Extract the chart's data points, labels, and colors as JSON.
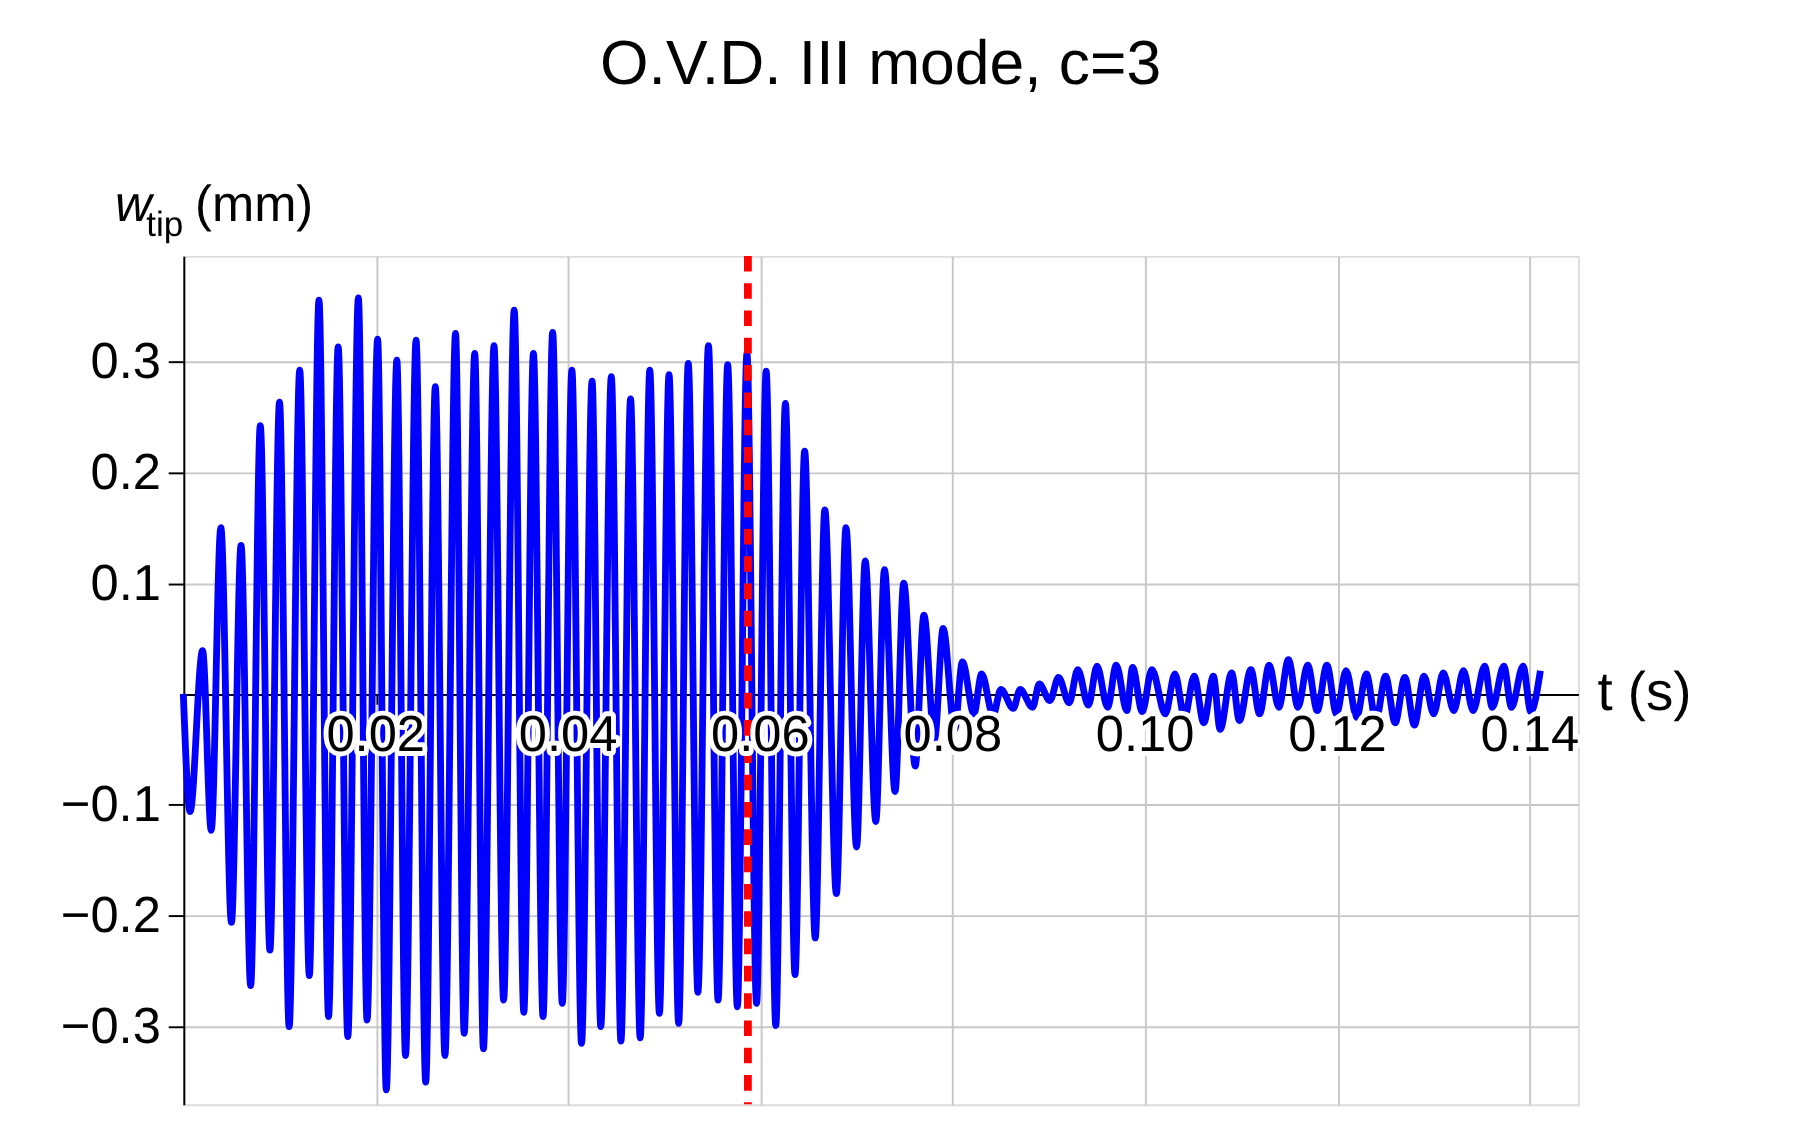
{
  "chart_data": {
    "type": "line",
    "title": "O.V.D. III mode, c=3",
    "xlabel": "t (s)",
    "ylabel": "w$_{tip}$(mm)",
    "xlim": [
      0,
      0.145
    ],
    "ylim": [
      -0.37,
      0.395
    ],
    "xticks": [
      0.02,
      0.04,
      0.06,
      0.08,
      {
        "value": 0.1,
        "label": "0.10"
      },
      0.12,
      0.14
    ],
    "yticks": [
      {
        "value": -0.3,
        "label": "−0.3"
      },
      {
        "value": -0.2,
        "label": "−0.2"
      },
      {
        "value": -0.1,
        "label": "−0.1"
      },
      0.1,
      0.2,
      0.3
    ],
    "grid": true,
    "line_style": "solid",
    "ref_lines": [
      {
        "axis": "x",
        "value": 0.0587,
        "color": "#ff0000",
        "line_style": "dashed"
      }
    ],
    "series": [
      {
        "color": "#0000ff",
        "x": [
          0,
          0.0007,
          0.002,
          0.0029,
          0.0039,
          0.005,
          0.006,
          0.007,
          0.008,
          0.009,
          0.01,
          0.011,
          0.0121,
          0.0131,
          0.0141,
          0.0151,
          0.0161,
          0.0171,
          0.0182,
          0.0191,
          0.0202,
          0.0211,
          0.0222,
          0.0231,
          0.0242,
          0.0252,
          0.0262,
          0.0272,
          0.0283,
          0.0292,
          0.0303,
          0.0312,
          0.0323,
          0.0333,
          0.0344,
          0.0354,
          0.0364,
          0.0374,
          0.0384,
          0.0394,
          0.0404,
          0.0414,
          0.0425,
          0.0434,
          0.0445,
          0.0455,
          0.0465,
          0.0475,
          0.0485,
          0.0495,
          0.0505,
          0.0515,
          0.0525,
          0.0535,
          0.0546,
          0.0556,
          0.0566,
          0.0576,
          0.0586,
          0.0596,
          0.0606,
          0.0616,
          0.0626,
          0.0636,
          0.0646,
          0.0657,
          0.0667,
          0.0679,
          0.0689,
          0.07,
          0.0709,
          0.072,
          0.0729,
          0.074,
          0.0749,
          0.0761,
          0.077,
          0.0781,
          0.079,
          0.0802,
          0.081,
          0.0822,
          0.083,
          0.0842,
          0.085,
          0.0863,
          0.087,
          0.0883,
          0.089,
          0.0901,
          0.091,
          0.0921,
          0.093,
          0.0941,
          0.095,
          0.0961,
          0.097,
          0.0981,
          0.0987,
          0.0997,
          0.1007,
          0.1021,
          0.1031,
          0.1041,
          0.1051,
          0.1061,
          0.1071,
          0.1078,
          0.109,
          0.1098,
          0.111,
          0.1119,
          0.1129,
          0.1139,
          0.1149,
          0.1159,
          0.1169,
          0.1179,
          0.1189,
          0.1199,
          0.1209,
          0.122,
          0.123,
          0.124,
          0.125,
          0.126,
          0.127,
          0.128,
          0.129,
          0.13,
          0.131,
          0.1321,
          0.1331,
          0.1341,
          0.1353,
          0.1361,
          0.1373,
          0.1381,
          0.1393,
          0.1401,
          0.1411
        ],
        "values": [
          0,
          -0.106,
          0.039,
          -0.123,
          0.15,
          -0.206,
          0.134,
          -0.263,
          0.242,
          -0.231,
          0.263,
          -0.3,
          0.292,
          -0.254,
          0.355,
          -0.291,
          0.313,
          -0.309,
          0.357,
          -0.294,
          0.32,
          -0.357,
          0.301,
          -0.326,
          0.319,
          -0.35,
          0.277,
          -0.326,
          0.325,
          -0.306,
          0.307,
          -0.32,
          0.314,
          -0.276,
          0.346,
          -0.287,
          0.307,
          -0.291,
          0.326,
          -0.279,
          0.292,
          -0.315,
          0.282,
          -0.3,
          0.286,
          -0.313,
          0.266,
          -0.31,
          0.292,
          -0.288,
          0.288,
          -0.297,
          0.298,
          -0.269,
          0.314,
          -0.276,
          0.297,
          -0.282,
          0.307,
          -0.279,
          0.291,
          -0.299,
          0.262,
          -0.253,
          0.219,
          -0.22,
          0.166,
          -0.18,
          0.15,
          -0.138,
          0.12,
          -0.115,
          0.112,
          -0.088,
          0.1,
          -0.065,
          0.071,
          -0.041,
          0.059,
          -0.032,
          0.029,
          -0.018,
          0.018,
          -0.019,
          0.004,
          -0.013,
          0.004,
          -0.012,
          0.009,
          -0.006,
          0.015,
          -0.008,
          0.022,
          -0.01,
          0.025,
          -0.012,
          0.026,
          -0.015,
          0.024,
          -0.016,
          0.022,
          -0.018,
          0.018,
          -0.021,
          0.016,
          -0.026,
          0.016,
          -0.032,
          0.019,
          -0.024,
          0.022,
          -0.018,
          0.026,
          -0.012,
          0.031,
          -0.012,
          0.026,
          -0.015,
          0.026,
          -0.018,
          0.021,
          -0.021,
          0.018,
          -0.024,
          0.016,
          -0.026,
          0.015,
          -0.028,
          0.016,
          -0.018,
          0.019,
          -0.015,
          0.021,
          -0.015,
          0.025,
          -0.012,
          0.025,
          -0.012,
          0.025,
          -0.016,
          0.021
        ]
      }
    ]
  }
}
